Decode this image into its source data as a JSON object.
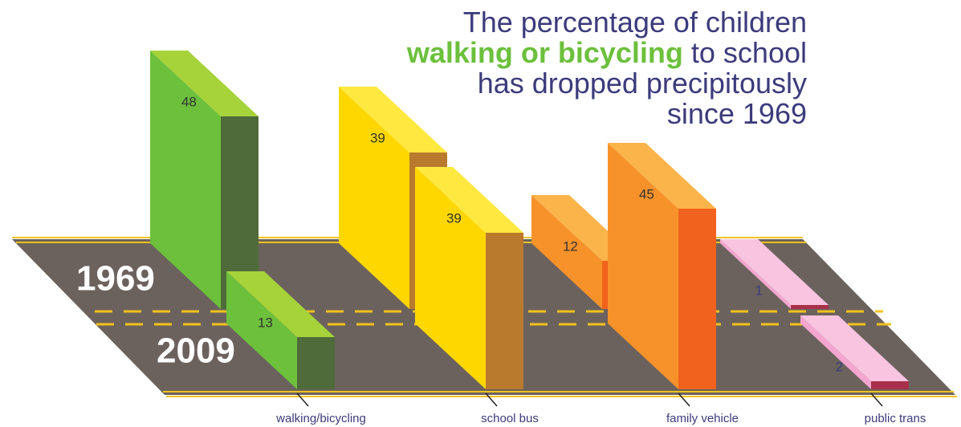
{
  "chart_data": {
    "type": "bar3d",
    "title_lines": [
      [
        {
          "text": "The percentage of children"
        }
      ],
      [
        {
          "text": "walking or bicycling",
          "highlight": true
        },
        {
          "text": "to school"
        }
      ],
      [
        {
          "text": "has dropped precipitously"
        }
      ],
      [
        {
          "text": "since 1969"
        }
      ]
    ],
    "title_color": "#3c3b7c",
    "highlight_color": "#6cc03c",
    "categories": [
      "walking/bicycling",
      "school bus",
      "family vehicle",
      "public trans"
    ],
    "colors": [
      {
        "front": "#6cc03c",
        "top": "#a6d23a",
        "side": "#4f6b3a"
      },
      {
        "front": "#ffd700",
        "top": "#ffe840",
        "side": "#b97a2e"
      },
      {
        "front": "#f7922a",
        "top": "#fbb44a",
        "side": "#f0621e"
      },
      {
        "front": "#f4a6cf",
        "top": "#f8c4df",
        "side": "#a8304a"
      }
    ],
    "series": [
      {
        "name": "1969",
        "values": [
          48,
          39,
          12,
          1
        ]
      },
      {
        "name": "2009",
        "values": [
          13,
          39,
          45,
          2
        ]
      }
    ],
    "ylim": [
      0,
      50
    ]
  }
}
